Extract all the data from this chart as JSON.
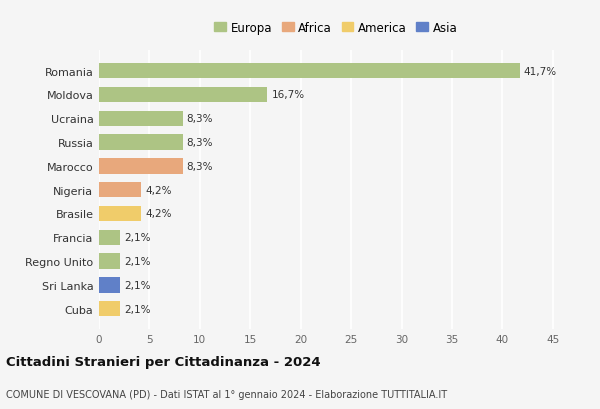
{
  "countries": [
    "Romania",
    "Moldova",
    "Ucraina",
    "Russia",
    "Marocco",
    "Nigeria",
    "Brasile",
    "Francia",
    "Regno Unito",
    "Sri Lanka",
    "Cuba"
  ],
  "values": [
    41.7,
    16.7,
    8.3,
    8.3,
    8.3,
    4.2,
    4.2,
    2.1,
    2.1,
    2.1,
    2.1
  ],
  "labels": [
    "41,7%",
    "16,7%",
    "8,3%",
    "8,3%",
    "8,3%",
    "4,2%",
    "4,2%",
    "2,1%",
    "2,1%",
    "2,1%",
    "2,1%"
  ],
  "continents": [
    "Europa",
    "Europa",
    "Europa",
    "Europa",
    "Africa",
    "Africa",
    "America",
    "Europa",
    "Europa",
    "Asia",
    "America"
  ],
  "colors": {
    "Europa": "#adc484",
    "Africa": "#e8a87c",
    "America": "#f0cc6a",
    "Asia": "#6080c8"
  },
  "xlim": [
    0,
    47
  ],
  "xticks": [
    0,
    5,
    10,
    15,
    20,
    25,
    30,
    35,
    40,
    45
  ],
  "title": "Cittadini Stranieri per Cittadinanza - 2024",
  "subtitle": "COMUNE DI VESCOVANA (PD) - Dati ISTAT al 1° gennaio 2024 - Elaborazione TUTTITALIA.IT",
  "background_color": "#f5f5f5",
  "grid_color": "#ffffff",
  "bar_height": 0.65,
  "label_fontsize": 7.5,
  "ytick_fontsize": 8,
  "xtick_fontsize": 7.5,
  "legend_fontsize": 8.5,
  "title_fontsize": 9.5,
  "subtitle_fontsize": 7
}
